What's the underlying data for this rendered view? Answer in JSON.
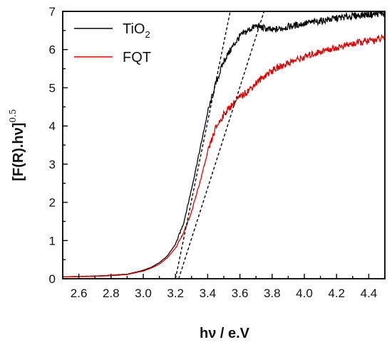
{
  "chart_data": {
    "type": "line",
    "xlabel": "hν / e.V",
    "ylabel": {
      "main": "[F(R).hν]",
      "superscript": "0.5"
    },
    "xlim": [
      2.5,
      4.5
    ],
    "ylim": [
      0,
      7
    ],
    "x_ticks": [
      "2.6",
      "2.8",
      "3.0",
      "3.2",
      "3.4",
      "3.6",
      "3.8",
      "4.0",
      "4.2",
      "4.4"
    ],
    "y_ticks": [
      "0",
      "1",
      "2",
      "3",
      "4",
      "5",
      "6",
      "7"
    ],
    "grid": false,
    "legend_position": "top-left",
    "series": [
      {
        "name": "TiO2",
        "legend_main": "TiO",
        "legend_subscript": "2",
        "color": "#000000",
        "points": [
          [
            2.5,
            0.05
          ],
          [
            2.7,
            0.07
          ],
          [
            2.8,
            0.09
          ],
          [
            2.9,
            0.12
          ],
          [
            3.0,
            0.22
          ],
          [
            3.05,
            0.3
          ],
          [
            3.1,
            0.42
          ],
          [
            3.15,
            0.6
          ],
          [
            3.2,
            0.9
          ],
          [
            3.25,
            1.45
          ],
          [
            3.3,
            2.35
          ],
          [
            3.35,
            3.35
          ],
          [
            3.4,
            4.35
          ],
          [
            3.45,
            5.1
          ],
          [
            3.5,
            5.7
          ],
          [
            3.55,
            6.05
          ],
          [
            3.6,
            6.35
          ],
          [
            3.65,
            6.5
          ],
          [
            3.7,
            6.62
          ],
          [
            3.8,
            6.5
          ],
          [
            3.9,
            6.6
          ],
          [
            4.0,
            6.68
          ],
          [
            4.1,
            6.75
          ],
          [
            4.2,
            6.82
          ],
          [
            4.3,
            6.88
          ],
          [
            4.4,
            6.92
          ],
          [
            4.5,
            6.95
          ]
        ]
      },
      {
        "name": "FQT",
        "legend_main": "FQT",
        "color": "#e00000",
        "points": [
          [
            2.5,
            0.05
          ],
          [
            2.7,
            0.06
          ],
          [
            2.8,
            0.08
          ],
          [
            2.9,
            0.11
          ],
          [
            3.0,
            0.2
          ],
          [
            3.05,
            0.28
          ],
          [
            3.1,
            0.38
          ],
          [
            3.15,
            0.55
          ],
          [
            3.2,
            0.8
          ],
          [
            3.25,
            1.2
          ],
          [
            3.3,
            1.75
          ],
          [
            3.35,
            2.5
          ],
          [
            3.4,
            3.3
          ],
          [
            3.45,
            3.95
          ],
          [
            3.5,
            4.3
          ],
          [
            3.55,
            4.55
          ],
          [
            3.6,
            4.75
          ],
          [
            3.65,
            4.92
          ],
          [
            3.7,
            5.12
          ],
          [
            3.75,
            5.3
          ],
          [
            3.8,
            5.45
          ],
          [
            3.9,
            5.65
          ],
          [
            4.0,
            5.8
          ],
          [
            4.1,
            5.95
          ],
          [
            4.2,
            6.05
          ],
          [
            4.3,
            6.15
          ],
          [
            4.4,
            6.22
          ],
          [
            4.5,
            6.3
          ]
        ]
      }
    ],
    "tangent_lines": [
      {
        "color": "#000000",
        "style": "dashed",
        "points": [
          [
            3.2,
            0
          ],
          [
            3.54,
            7
          ]
        ]
      },
      {
        "color": "#000000",
        "style": "dashed",
        "points": [
          [
            3.22,
            0
          ],
          [
            3.75,
            7
          ]
        ]
      }
    ]
  }
}
